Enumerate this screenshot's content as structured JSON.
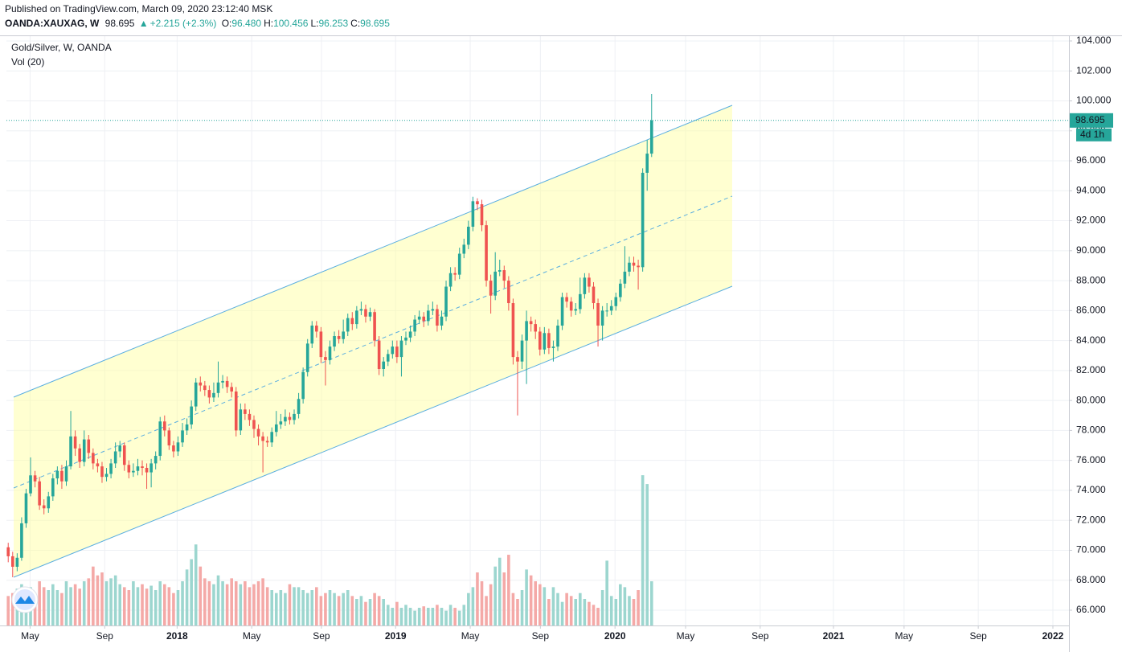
{
  "header": {
    "published": "Published on TradingView.com, March 09, 2020 23:12:40 MSK",
    "symbol": "OANDA:XAUXAG, W",
    "last": "98.695",
    "change": "+2.215 (+2.3%)",
    "ohlc": [
      {
        "key": "O:",
        "value": "96.480"
      },
      {
        "key": "H:",
        "value": "100.456"
      },
      {
        "key": "L:",
        "value": "96.253"
      },
      {
        "key": "C:",
        "value": "98.695"
      }
    ]
  },
  "chart_data": {
    "type": "candlestick",
    "title": "Gold/Silver, W, OANDA",
    "subtitle": "Vol (20)",
    "countdown": "4d 1h",
    "up_color": "#26a69a",
    "down_color": "#ef5350",
    "volume_up_color": "#9cd6cf",
    "volume_down_color": "#f4a9a7",
    "channel_color": "#5aaee0",
    "grid": true,
    "x": [
      0,
      1,
      2,
      3,
      4,
      5,
      6,
      7,
      8,
      9,
      10,
      11,
      12,
      13,
      14,
      15,
      16,
      17,
      18,
      19,
      20,
      21,
      22,
      23,
      24,
      25,
      26,
      27,
      28,
      29,
      30,
      31,
      32,
      33,
      34,
      35,
      36,
      37,
      38,
      39,
      40,
      41,
      42,
      43,
      44,
      45,
      46,
      47,
      48,
      49,
      50,
      51,
      52,
      53,
      54,
      55,
      56,
      57,
      58,
      59,
      60,
      61,
      62,
      63,
      64,
      65,
      66,
      67,
      68,
      69,
      70,
      71,
      72,
      73,
      74,
      75,
      76,
      77,
      78,
      79,
      80,
      81,
      82,
      83,
      84,
      85,
      86,
      87,
      88,
      89,
      90,
      91,
      92,
      93,
      94,
      95,
      96,
      97,
      98,
      99,
      100,
      101,
      102,
      103,
      104,
      105,
      106,
      107,
      108,
      109,
      110,
      111,
      112,
      113,
      114,
      115,
      116,
      117,
      118,
      119,
      120,
      121,
      122,
      123,
      124,
      125,
      126,
      127,
      128,
      129,
      130,
      131,
      132,
      133,
      134,
      135,
      136,
      137,
      138,
      139,
      140,
      141,
      142,
      143,
      144
    ],
    "open": [
      70.2,
      69.6,
      68.9,
      69.5,
      71.8,
      73.8,
      75.0,
      74.6,
      73.0,
      72.8,
      73.6,
      74.8,
      75.3,
      74.6,
      75.6,
      77.6,
      76.8,
      75.9,
      77.4,
      76.5,
      75.8,
      75.6,
      74.9,
      75.1,
      75.8,
      76.6,
      77.0,
      75.7,
      75.2,
      75.3,
      75.6,
      75.5,
      75.2,
      75.8,
      76.3,
      78.6,
      78.0,
      77.0,
      76.6,
      77.2,
      78.0,
      78.4,
      79.6,
      81.2,
      81.0,
      80.7,
      80.2,
      80.5,
      81.2,
      81.3,
      80.9,
      80.6,
      78.0,
      79.4,
      79.1,
      78.7,
      78.1,
      77.6,
      77.3,
      77.2,
      77.9,
      78.4,
      78.6,
      78.9,
      78.7,
      79.1,
      80.1,
      81.9,
      83.8,
      85.0,
      84.6,
      82.9,
      82.7,
      83.6,
      84.3,
      84.1,
      84.6,
      85.5,
      85.1,
      86.0,
      86.1,
      85.6,
      85.9,
      84.0,
      82.1,
      82.6,
      83.1,
      83.6,
      82.9,
      84.0,
      84.2,
      84.6,
      85.4,
      85.6,
      85.3,
      86.0,
      86.1,
      85.0,
      85.6,
      87.6,
      88.5,
      88.4,
      89.8,
      90.4,
      91.6,
      93.3,
      93.1,
      91.7,
      88.0,
      87.0,
      88.6,
      88.7,
      88.0,
      86.5,
      82.9,
      82.6,
      84.0,
      85.3,
      85.1,
      84.6,
      83.4,
      84.5,
      83.5,
      83.6,
      85.0,
      86.9,
      86.6,
      86.0,
      86.1,
      87.1,
      88.2,
      87.6,
      86.5,
      85.0,
      86.0,
      86.0,
      86.3,
      86.9,
      87.8,
      88.6,
      89.2,
      89.0,
      88.9,
      95.2,
      96.48
    ],
    "high": [
      70.5,
      69.9,
      69.8,
      72.2,
      74.1,
      76.2,
      75.3,
      74.9,
      73.4,
      73.9,
      75.1,
      75.6,
      75.7,
      76.0,
      79.3,
      78.0,
      77.1,
      78.0,
      77.7,
      76.8,
      76.1,
      75.9,
      75.5,
      76.1,
      77.2,
      77.3,
      77.2,
      76.0,
      75.8,
      76.1,
      76.0,
      75.8,
      76.1,
      76.6,
      78.9,
      79.0,
      78.2,
      77.3,
      77.6,
      78.5,
      78.8,
      80.0,
      81.5,
      81.6,
      81.3,
      81.0,
      81.2,
      82.6,
      81.7,
      81.6,
      81.2,
      80.9,
      79.8,
      79.8,
      79.4,
      79.0,
      78.4,
      77.9,
      77.6,
      78.2,
      79.3,
      79.1,
      79.4,
      79.2,
      79.4,
      80.5,
      82.2,
      84.1,
      85.3,
      85.3,
      84.9,
      83.3,
      84.0,
      84.6,
      84.7,
      85.4,
      85.8,
      85.9,
      86.3,
      86.6,
      86.4,
      86.2,
      86.1,
      84.3,
      82.9,
      83.4,
      84.0,
      84.0,
      84.3,
      84.6,
      85.0,
      85.7,
      86.0,
      85.9,
      86.4,
      86.6,
      86.4,
      86.0,
      88.0,
      88.9,
      88.9,
      90.2,
      90.8,
      92.0,
      93.6,
      93.5,
      93.4,
      92.0,
      88.4,
      89.9,
      89.4,
      89.0,
      88.3,
      86.8,
      83.3,
      84.4,
      86.0,
      85.6,
      85.4,
      84.9,
      84.9,
      84.8,
      84.0,
      85.4,
      87.2,
      87.2,
      86.9,
      86.5,
      88.2,
      88.5,
      88.5,
      87.9,
      86.8,
      86.3,
      86.5,
      86.7,
      87.2,
      88.1,
      90.3,
      89.6,
      89.6,
      89.4,
      95.5,
      97.4,
      100.456
    ],
    "low": [
      69.2,
      68.2,
      68.6,
      69.3,
      71.5,
      73.6,
      74.2,
      72.7,
      72.4,
      72.5,
      73.3,
      74.4,
      74.1,
      74.3,
      75.4,
      76.3,
      75.5,
      75.6,
      76.1,
      75.4,
      75.2,
      74.5,
      74.6,
      74.8,
      75.5,
      76.2,
      75.3,
      74.8,
      74.9,
      75.0,
      75.0,
      74.1,
      74.2,
      75.4,
      76.0,
      77.6,
      76.7,
      76.2,
      76.3,
      76.9,
      77.7,
      78.1,
      79.3,
      80.6,
      80.3,
      79.8,
      79.9,
      80.2,
      80.8,
      80.5,
      80.2,
      77.6,
      77.7,
      78.7,
      78.3,
      77.5,
      77.0,
      75.2,
      76.9,
      76.9,
      77.6,
      78.1,
      78.3,
      78.4,
      78.4,
      78.8,
      79.8,
      81.6,
      83.5,
      84.2,
      82.5,
      81.0,
      82.4,
      83.3,
      83.8,
      83.8,
      84.3,
      84.7,
      84.8,
      85.7,
      85.2,
      85.3,
      83.6,
      81.7,
      81.6,
      82.3,
      82.8,
      82.5,
      81.6,
      83.7,
      83.9,
      84.3,
      85.1,
      84.9,
      85.0,
      85.7,
      84.6,
      84.7,
      85.3,
      87.3,
      88.0,
      88.1,
      89.5,
      90.1,
      91.3,
      92.7,
      91.3,
      87.6,
      85.8,
      86.7,
      88.3,
      87.5,
      86.0,
      82.4,
      79.0,
      82.1,
      81.1,
      84.6,
      84.1,
      83.0,
      83.1,
      83.1,
      82.6,
      83.3,
      84.7,
      86.2,
      85.6,
      85.7,
      85.8,
      86.8,
      87.2,
      86.1,
      83.6,
      84.0,
      85.6,
      85.7,
      86.0,
      86.6,
      87.5,
      88.3,
      88.6,
      87.4,
      88.6,
      94.0,
      96.253
    ],
    "close": [
      69.6,
      68.9,
      69.5,
      71.8,
      73.8,
      75.0,
      74.6,
      73.0,
      72.8,
      73.6,
      74.8,
      75.3,
      74.6,
      75.6,
      77.6,
      76.8,
      75.9,
      77.4,
      76.5,
      75.8,
      75.6,
      74.9,
      75.1,
      75.8,
      76.6,
      77.0,
      75.7,
      75.2,
      75.3,
      75.6,
      75.5,
      75.2,
      75.8,
      76.3,
      78.6,
      78.0,
      77.0,
      76.6,
      77.2,
      78.0,
      78.4,
      79.6,
      81.2,
      81.0,
      80.7,
      80.2,
      80.5,
      81.2,
      81.3,
      80.9,
      80.6,
      78.0,
      79.4,
      79.1,
      78.7,
      78.1,
      77.6,
      77.3,
      77.2,
      77.9,
      78.4,
      78.6,
      78.9,
      78.7,
      79.1,
      80.1,
      81.9,
      83.8,
      85.0,
      84.6,
      82.9,
      82.7,
      83.6,
      84.3,
      84.1,
      84.6,
      85.5,
      85.1,
      86.0,
      86.1,
      85.6,
      85.9,
      84.0,
      82.1,
      82.6,
      83.1,
      83.6,
      82.9,
      84.0,
      84.2,
      84.6,
      85.4,
      85.6,
      85.3,
      86.0,
      86.1,
      85.0,
      85.6,
      87.6,
      88.5,
      88.4,
      89.8,
      90.4,
      91.6,
      93.3,
      93.1,
      91.7,
      88.0,
      87.0,
      88.6,
      88.7,
      88.0,
      86.5,
      82.9,
      82.6,
      84.0,
      85.3,
      85.1,
      84.6,
      83.4,
      84.5,
      83.5,
      83.6,
      85.0,
      86.9,
      86.6,
      86.0,
      86.1,
      87.1,
      88.2,
      87.6,
      86.5,
      85.0,
      86.0,
      86.0,
      86.3,
      86.9,
      87.8,
      88.6,
      89.2,
      89.0,
      88.9,
      95.2,
      96.48,
      98.695
    ],
    "volume": [
      20,
      22,
      25,
      28,
      24,
      26,
      22,
      30,
      26,
      24,
      28,
      24,
      22,
      30,
      26,
      28,
      25,
      30,
      32,
      40,
      34,
      36,
      30,
      32,
      34,
      28,
      26,
      24,
      30,
      26,
      28,
      25,
      27,
      24,
      30,
      28,
      26,
      22,
      24,
      30,
      38,
      45,
      55,
      40,
      32,
      30,
      28,
      34,
      30,
      28,
      32,
      30,
      28,
      30,
      26,
      28,
      30,
      32,
      26,
      24,
      22,
      24,
      22,
      28,
      26,
      26,
      24,
      22,
      24,
      26,
      20,
      22,
      24,
      22,
      20,
      22,
      24,
      20,
      18,
      20,
      16,
      18,
      22,
      20,
      18,
      14,
      12,
      16,
      12,
      14,
      12,
      10,
      12,
      13,
      12,
      12,
      14,
      12,
      10,
      14,
      12,
      10,
      14,
      22,
      26,
      36,
      30,
      20,
      28,
      40,
      46,
      36,
      48,
      22,
      18,
      24,
      38,
      34,
      30,
      28,
      26,
      18,
      26,
      22,
      16,
      22,
      20,
      18,
      22,
      18,
      16,
      14,
      12,
      24,
      44,
      20,
      18,
      28,
      26,
      20,
      18,
      24,
      102,
      96,
      30
    ],
    "volume_lim": [
      0,
      400
    ],
    "xlim": [
      -0.4,
      237.4
    ],
    "xticks": [
      {
        "value": 4.9,
        "label": "May"
      },
      {
        "value": 21.6,
        "label": "Sep"
      },
      {
        "value": 37.8,
        "label": "2018"
      },
      {
        "value": 54.5,
        "label": "May"
      },
      {
        "value": 70.1,
        "label": "Sep"
      },
      {
        "value": 86.7,
        "label": "2019"
      },
      {
        "value": 103.4,
        "label": "May"
      },
      {
        "value": 119.1,
        "label": "Sep"
      },
      {
        "value": 135.8,
        "label": "2020"
      },
      {
        "value": 151.6,
        "label": "May"
      },
      {
        "value": 168.3,
        "label": "Sep"
      },
      {
        "value": 184.7,
        "label": "2021"
      },
      {
        "value": 200.5,
        "label": "May"
      },
      {
        "value": 217.1,
        "label": "Sep"
      },
      {
        "value": 233.8,
        "label": "2022"
      }
    ],
    "ylim": [
      64.98,
      104.32
    ],
    "yticks": [
      {
        "value": 66,
        "label": "66.000"
      },
      {
        "value": 68,
        "label": "68.000"
      },
      {
        "value": 70,
        "label": "70.000"
      },
      {
        "value": 72,
        "label": "72.000"
      },
      {
        "value": 74,
        "label": "74.000"
      },
      {
        "value": 76,
        "label": "76.000"
      },
      {
        "value": 78,
        "label": "78.000"
      },
      {
        "value": 80,
        "label": "80.000"
      },
      {
        "value": 82,
        "label": "82.000"
      },
      {
        "value": 84,
        "label": "84.000"
      },
      {
        "value": 86,
        "label": "86.000"
      },
      {
        "value": 88,
        "label": "88.000"
      },
      {
        "value": 90,
        "label": "90.000"
      },
      {
        "value": 92,
        "label": "92.000"
      },
      {
        "value": 94,
        "label": "94.000"
      },
      {
        "value": 96,
        "label": "96.000"
      },
      {
        "value": 98,
        "label": "98.000"
      },
      {
        "value": 100,
        "label": "100.000"
      },
      {
        "value": 102,
        "label": "102.000"
      },
      {
        "value": 104,
        "label": "104.000"
      }
    ]
  }
}
